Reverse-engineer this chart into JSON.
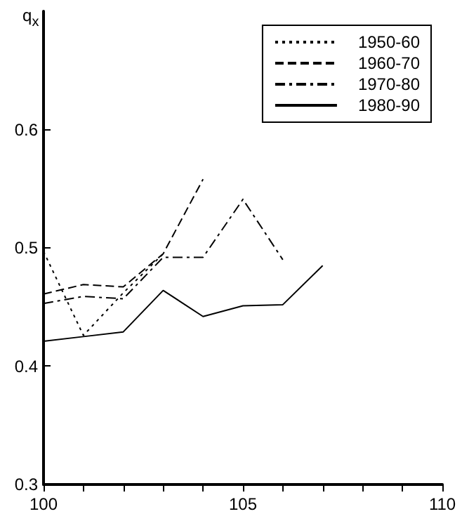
{
  "chart_data": {
    "type": "line",
    "ylabel": "q$_{x}$",
    "series": [
      {
        "name": "1950-60",
        "color": "#000000",
        "line_style": "dotted",
        "x": [
          100,
          101,
          102,
          103
        ],
        "values": [
          0.497,
          0.426,
          0.462,
          0.495
        ]
      },
      {
        "name": "1960-70",
        "color": "#000000",
        "line_style": "dashed",
        "x": [
          100,
          101,
          102,
          103,
          104
        ],
        "values": [
          0.461,
          0.469,
          0.467,
          0.495,
          0.558
        ]
      },
      {
        "name": "1970-80",
        "color": "#000000",
        "line_style": "dashdot",
        "x": [
          100,
          101,
          102,
          103,
          104,
          105,
          106
        ],
        "values": [
          0.453,
          0.459,
          0.457,
          0.492,
          0.492,
          0.541,
          0.49
        ]
      },
      {
        "name": "1980-90",
        "color": "#000000",
        "line_style": "solid",
        "x": [
          100,
          101,
          102,
          103,
          104,
          105,
          106,
          107
        ],
        "values": [
          0.421,
          0.425,
          0.429,
          0.464,
          0.442,
          0.451,
          0.452,
          0.485
        ]
      }
    ],
    "xlim": [
      100,
      110
    ],
    "xticks": [
      100,
      {
        "value": 101,
        "label": null
      },
      {
        "value": 102,
        "label": null
      },
      {
        "value": 103,
        "label": null
      },
      {
        "value": 104,
        "label": null
      },
      105,
      {
        "value": 106,
        "label": null
      },
      {
        "value": 107,
        "label": null
      },
      {
        "value": 108,
        "label": null
      },
      {
        "value": 109,
        "label": null
      },
      110
    ],
    "ylim": [
      0.3,
      0.7
    ],
    "yticks": [
      0.3,
      0.4,
      0.5,
      0.6
    ],
    "legend": "top right",
    "grid": false,
    "marker": "none"
  }
}
